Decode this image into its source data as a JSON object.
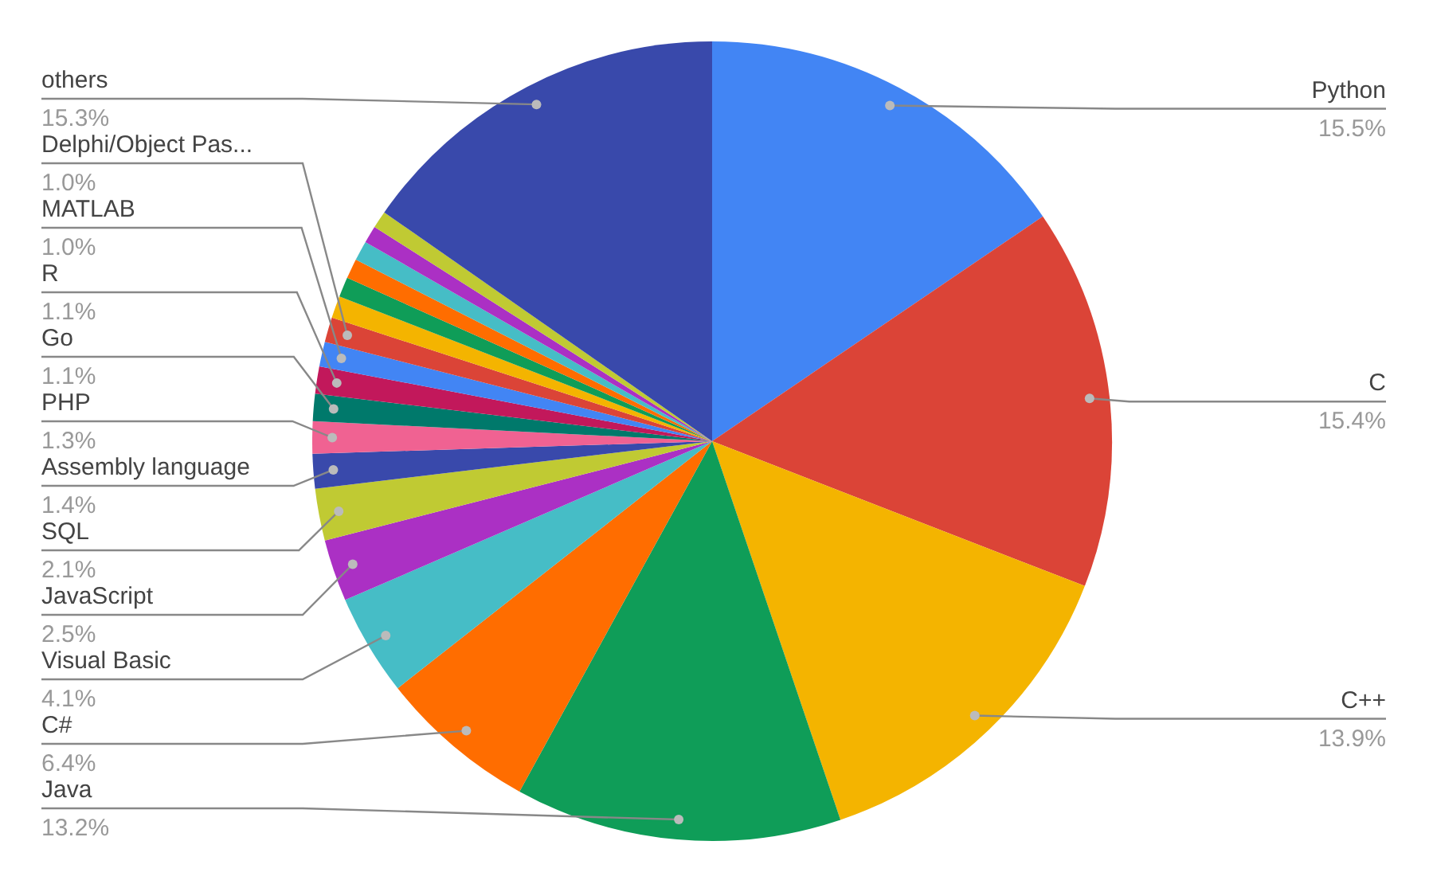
{
  "chart_data": {
    "type": "pie",
    "categories": [
      "Python",
      "C",
      "C++",
      "Java",
      "C#",
      "Visual Basic",
      "JavaScript",
      "SQL",
      "Assembly language",
      "PHP",
      "Go",
      "R",
      "MATLAB",
      "Delphi/Object Pas...",
      null,
      null,
      null,
      null,
      null,
      null,
      "others"
    ],
    "values": [
      15.5,
      15.4,
      13.9,
      13.2,
      6.4,
      4.1,
      2.5,
      2.1,
      1.4,
      1.3,
      1.1,
      1.1,
      1.0,
      1.0,
      0.9,
      0.8,
      0.8,
      0.8,
      0.7,
      0.7,
      15.3
    ],
    "value_labels": [
      "15.5%",
      "15.4%",
      "13.9%",
      "13.2%",
      "6.4%",
      "4.1%",
      "2.5%",
      "2.1%",
      "1.4%",
      "1.3%",
      "1.1%",
      "1.1%",
      "1.0%",
      "1.0%",
      null,
      null,
      null,
      null,
      null,
      null,
      "15.3%"
    ],
    "colors": [
      "#4285f4",
      "#db4437",
      "#f4b400",
      "#0f9d58",
      "#ff6d00",
      "#46bdc6",
      "#ab30c4",
      "#c0ca33",
      "#3949ab",
      "#f06292",
      "#00796b",
      "#c2185b",
      "#4285f4",
      "#db4437",
      "#f4b400",
      "#0f9d58",
      "#ff6d00",
      "#46bdc6",
      "#ab30c4",
      "#c0ca33",
      "#3949ab"
    ]
  }
}
